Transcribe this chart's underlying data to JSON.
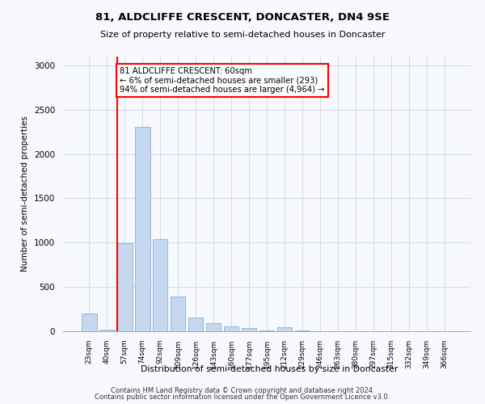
{
  "title1": "81, ALDCLIFFE CRESCENT, DONCASTER, DN4 9SE",
  "title2": "Size of property relative to semi-detached houses in Doncaster",
  "xlabel": "Distribution of semi-detached houses by size in Doncaster",
  "ylabel": "Number of semi-detached properties",
  "categories": [
    "23sqm",
    "40sqm",
    "57sqm",
    "74sqm",
    "92sqm",
    "109sqm",
    "126sqm",
    "143sqm",
    "160sqm",
    "177sqm",
    "195sqm",
    "212sqm",
    "229sqm",
    "246sqm",
    "263sqm",
    "280sqm",
    "297sqm",
    "315sqm",
    "332sqm",
    "349sqm",
    "366sqm"
  ],
  "values": [
    205,
    15,
    990,
    2310,
    1035,
    395,
    158,
    90,
    58,
    32,
    12,
    50,
    5,
    2,
    2,
    1,
    1,
    0,
    0,
    0,
    0
  ],
  "bar_color": "#c5d8f0",
  "bar_edge_color": "#8ab0d0",
  "annotation_text": "81 ALDCLIFFE CRESCENT: 60sqm\n← 6% of semi-detached houses are smaller (293)\n94% of semi-detached houses are larger (4,964) →",
  "red_line_bin": 2,
  "footer1": "Contains HM Land Registry data © Crown copyright and database right 2024.",
  "footer2": "Contains public sector information licensed under the Open Government Licence v3.0.",
  "ylim": [
    0,
    3100
  ],
  "yticks": [
    0,
    500,
    1000,
    1500,
    2000,
    2500,
    3000
  ],
  "background_color": "#f8f9ff",
  "grid_color": "#d0d8ee"
}
